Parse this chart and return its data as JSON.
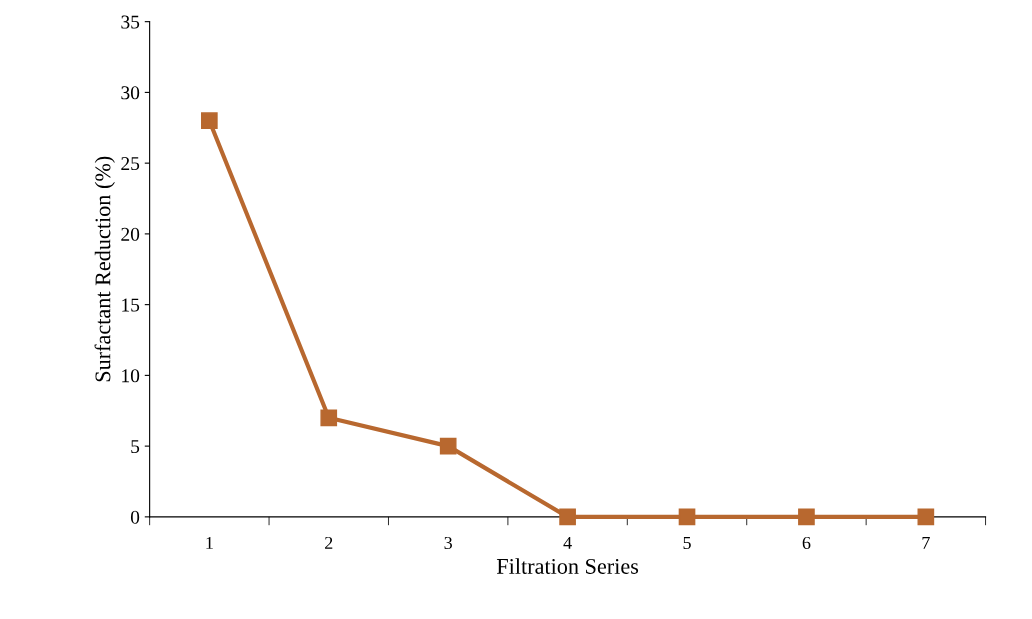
{
  "chart_data": {
    "type": "line",
    "xlabel": "Filtration Series",
    "ylabel": "Surfactant Reduction (%)",
    "categories": [
      "1",
      "2",
      "3",
      "4",
      "5",
      "6",
      "7"
    ],
    "values": [
      28,
      7,
      5,
      0,
      0,
      0,
      0
    ],
    "color": "#b8682f",
    "marker": "square",
    "line_style": "solid",
    "ylim": [
      0,
      35
    ],
    "yticks": [
      0,
      5,
      10,
      15,
      20,
      25,
      30,
      35
    ],
    "grid": false,
    "legend": false
  }
}
